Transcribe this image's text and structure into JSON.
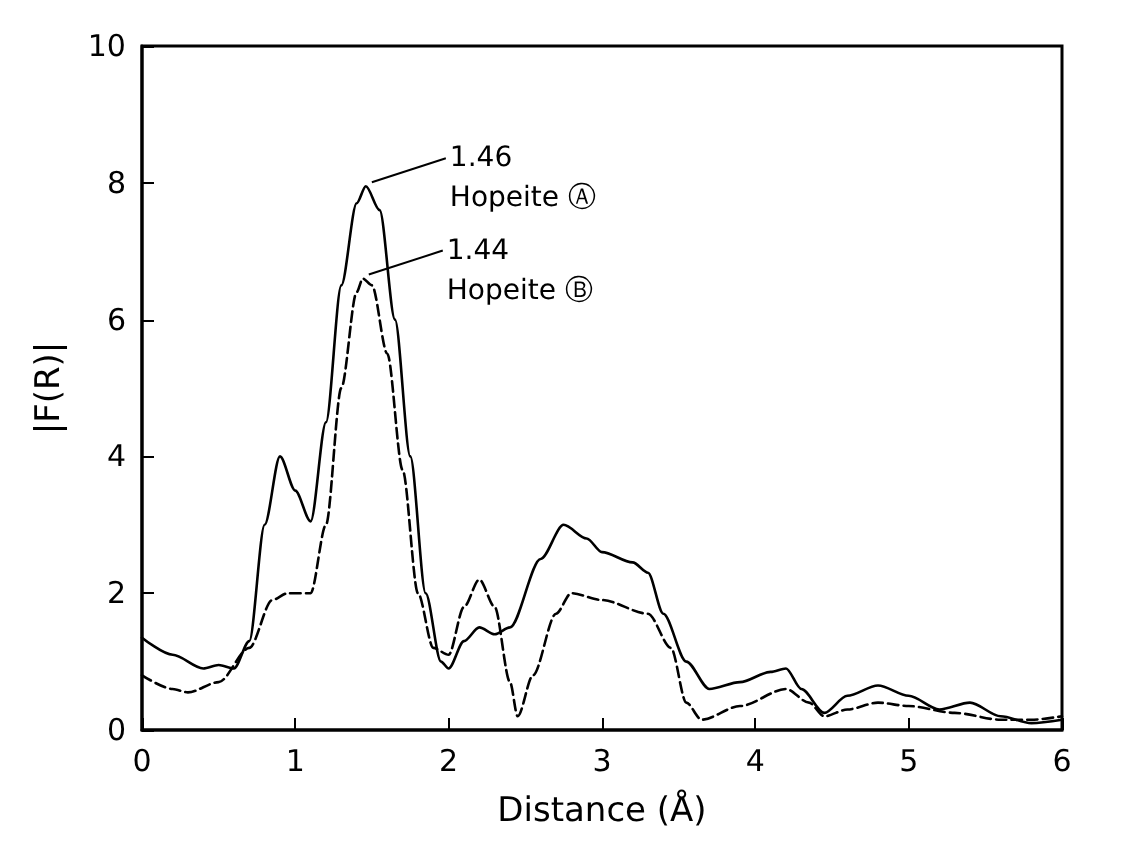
{
  "chart_data": {
    "type": "line",
    "xlabel": "Distance (Å)",
    "ylabel": "|F(R)|",
    "xlim": [
      0,
      6
    ],
    "xticks": [
      0,
      1,
      2,
      3,
      4,
      5,
      6
    ],
    "ylim": [
      0,
      10
    ],
    "yticks": [
      0,
      2,
      4,
      6,
      8,
      10
    ],
    "grid": false,
    "marker": "none",
    "series": [
      {
        "color": "#000000",
        "line_style": "solid",
        "x": [
          0,
          0.2,
          0.4,
          0.5,
          0.6,
          0.7,
          0.8,
          0.9,
          1.0,
          1.1,
          1.2,
          1.3,
          1.4,
          1.46,
          1.55,
          1.65,
          1.75,
          1.85,
          1.95,
          2.0,
          2.1,
          2.2,
          2.3,
          2.4,
          2.6,
          2.75,
          2.9,
          3.0,
          3.2,
          3.3,
          3.4,
          3.55,
          3.7,
          3.9,
          4.1,
          4.2,
          4.3,
          4.45,
          4.6,
          4.8,
          5.0,
          5.2,
          5.4,
          5.6,
          5.8,
          6.0
        ],
        "values": [
          1.35,
          1.1,
          0.9,
          0.95,
          0.9,
          1.3,
          3.0,
          4.0,
          3.5,
          3.05,
          4.5,
          6.5,
          7.7,
          7.95,
          7.6,
          6.0,
          4.0,
          2.0,
          1.0,
          0.9,
          1.3,
          1.5,
          1.4,
          1.5,
          2.5,
          3.0,
          2.8,
          2.6,
          2.45,
          2.3,
          1.7,
          1.0,
          0.6,
          0.7,
          0.85,
          0.9,
          0.6,
          0.25,
          0.5,
          0.65,
          0.5,
          0.3,
          0.4,
          0.2,
          0.1,
          0.15
        ]
      },
      {
        "color": "#000000",
        "line_style": "dashed",
        "x": [
          0,
          0.2,
          0.3,
          0.5,
          0.7,
          0.85,
          0.95,
          1.1,
          1.2,
          1.3,
          1.4,
          1.44,
          1.5,
          1.6,
          1.7,
          1.8,
          1.9,
          2.0,
          2.1,
          2.2,
          2.3,
          2.4,
          2.45,
          2.55,
          2.7,
          2.8,
          3.0,
          3.3,
          3.45,
          3.55,
          3.65,
          3.9,
          4.2,
          4.35,
          4.45,
          4.6,
          4.8,
          5.0,
          5.3,
          5.6,
          5.8,
          6.0
        ],
        "values": [
          0.8,
          0.6,
          0.55,
          0.7,
          1.2,
          1.9,
          2.0,
          2.0,
          3.0,
          5.0,
          6.4,
          6.6,
          6.5,
          5.5,
          3.8,
          2.0,
          1.2,
          1.1,
          1.8,
          2.2,
          1.8,
          0.7,
          0.2,
          0.8,
          1.7,
          2.0,
          1.9,
          1.7,
          1.2,
          0.4,
          0.15,
          0.35,
          0.6,
          0.4,
          0.2,
          0.3,
          0.4,
          0.35,
          0.25,
          0.15,
          0.15,
          0.2
        ]
      }
    ],
    "annotations": [
      {
        "text": "1.46\nHopeite Ⓐ",
        "x": 1.46,
        "y": 7.95
      },
      {
        "text": "1.44\nHopeite Ⓑ",
        "x": 1.44,
        "y": 6.6
      }
    ]
  }
}
